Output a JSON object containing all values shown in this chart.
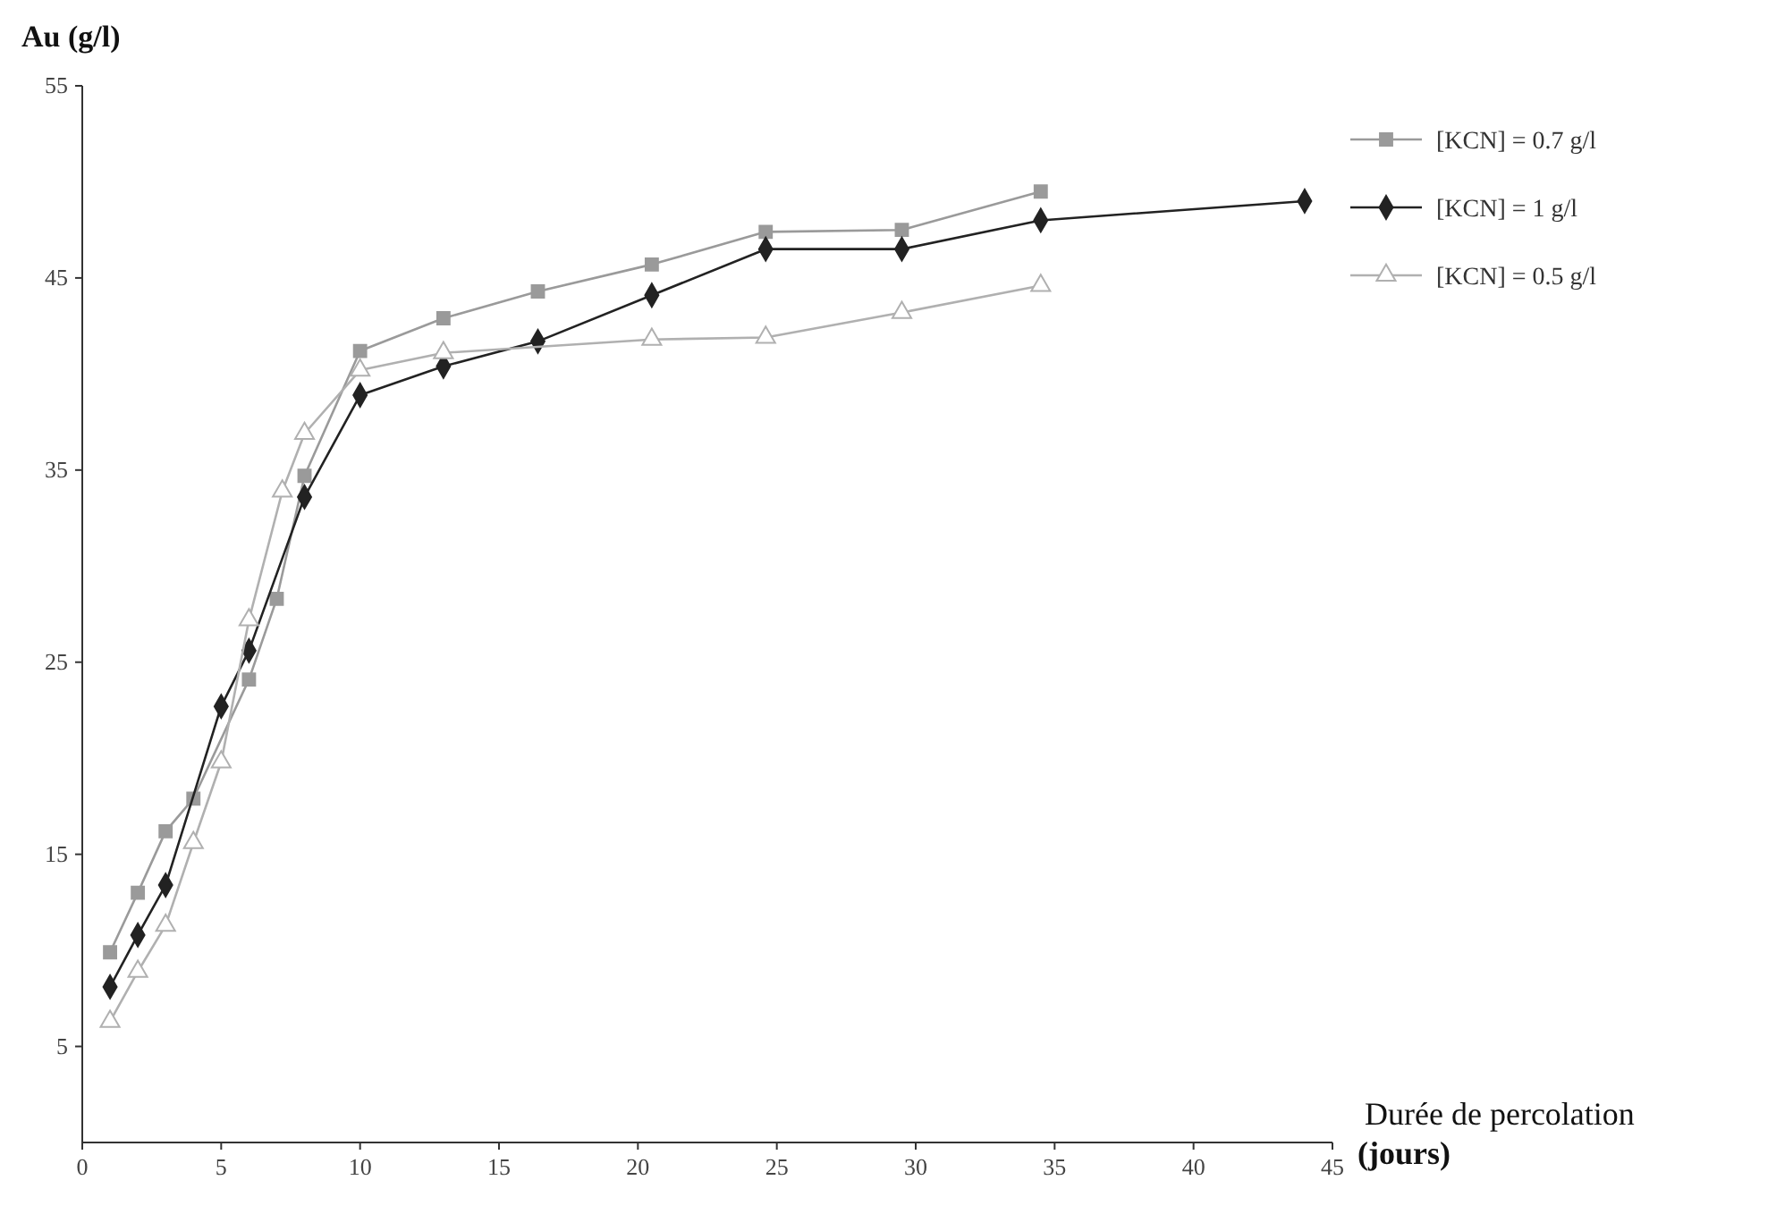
{
  "chart_data": {
    "type": "line",
    "xlabel": "Durée de percolation (jours)",
    "ylabel": "Au  (g/l)",
    "xlim": [
      0,
      45
    ],
    "xticks": [
      0,
      5,
      10,
      15,
      20,
      25,
      30,
      35,
      40,
      45
    ],
    "ylim": [
      0,
      55
    ],
    "yticks": [
      5,
      15,
      25,
      35,
      45,
      55
    ],
    "grid": false,
    "legend": "top right",
    "line_style": "solid",
    "series": [
      {
        "name": "[KCN] = 0.7 g/l",
        "color": "#9a9a9a",
        "marker": "square",
        "x": [
          1,
          2,
          3,
          4,
          6,
          7,
          8,
          10,
          13,
          16.4,
          20.5,
          24.6,
          29.5,
          34.5
        ],
        "values": [
          9.9,
          13,
          16.2,
          17.9,
          24.1,
          28.3,
          34.7,
          41.2,
          42.9,
          44.3,
          45.7,
          47.4,
          47.5,
          49.5
        ]
      },
      {
        "name": "[KCN] = 1 g/l",
        "color": "#222222",
        "marker": "diamond",
        "x": [
          1,
          2,
          3,
          5,
          6,
          8,
          10,
          13,
          16.4,
          20.5,
          24.6,
          29.5,
          34.5,
          44
        ],
        "values": [
          8.1,
          10.8,
          13.4,
          22.7,
          25.6,
          33.6,
          38.9,
          40.4,
          41.7,
          44.1,
          46.5,
          46.5,
          48,
          49
        ]
      },
      {
        "name": "[KCN] = 0.5 g/l",
        "color": "#b0b0b0",
        "marker": "triangle",
        "x": [
          1,
          2,
          3,
          4,
          5,
          6,
          7.2,
          8,
          10,
          13,
          20.5,
          24.6,
          29.5,
          34.5
        ],
        "values": [
          6.3,
          8.9,
          11.3,
          15.6,
          19.8,
          27.2,
          33.9,
          36.9,
          40.2,
          41.1,
          41.8,
          41.9,
          43.2,
          44.6
        ]
      }
    ]
  }
}
